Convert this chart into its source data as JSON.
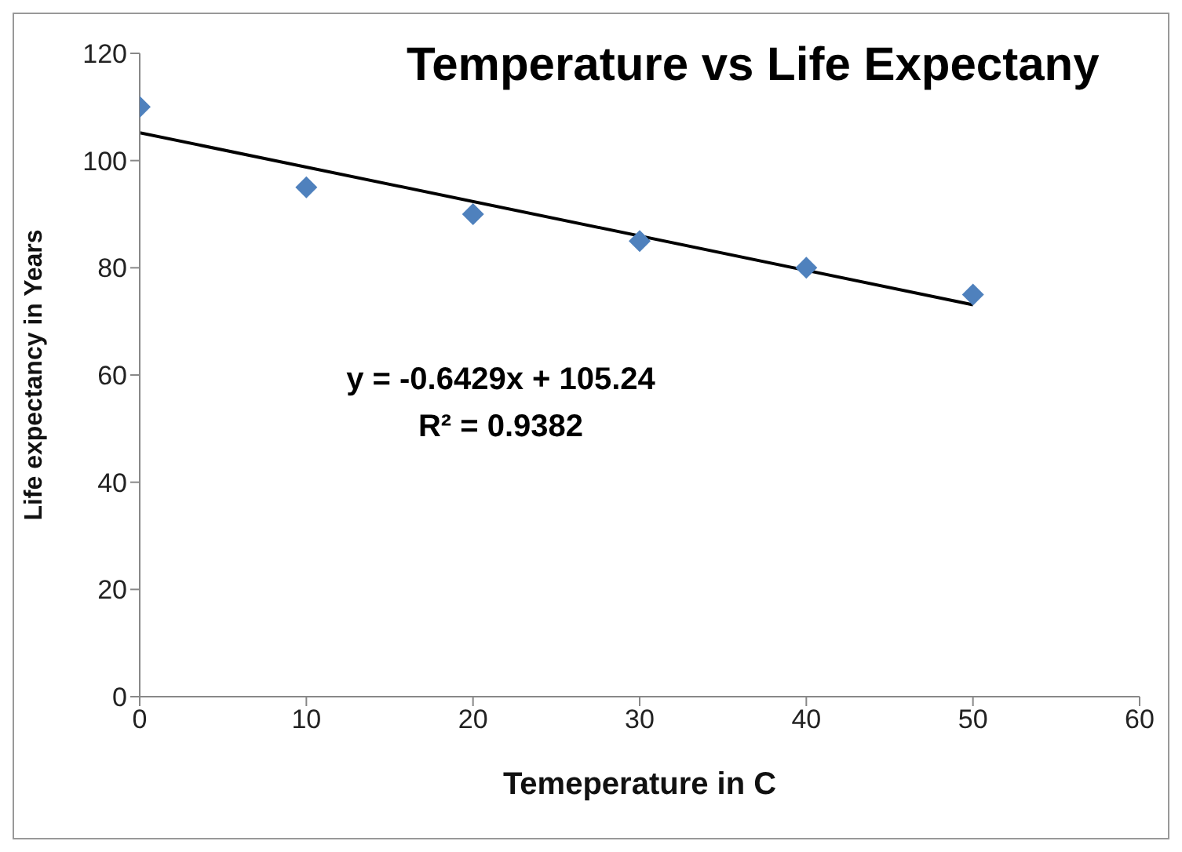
{
  "chart_data": {
    "type": "scatter",
    "title": "Temperature vs Life Expectany",
    "xlabel": "Temeperature in C",
    "ylabel": "Life expectancy in Years",
    "xlim": [
      0,
      60
    ],
    "xticks": [
      0,
      10,
      20,
      30,
      40,
      50,
      60
    ],
    "ylim": [
      0,
      120
    ],
    "yticks": [
      0,
      20,
      40,
      60,
      80,
      100,
      120
    ],
    "series": [
      {
        "color": "#4f81bd",
        "marker": "diamond",
        "x": [
          0,
          10,
          20,
          30,
          40,
          50
        ],
        "values": [
          110,
          95,
          90,
          85,
          80,
          75
        ]
      },
      {
        "type": "line",
        "color": "#000000",
        "marker": "none",
        "x": [
          0,
          50
        ],
        "values": [
          105.2,
          73.1
        ]
      }
    ],
    "annotations": [
      "y = -0.6429x + 105.24",
      "R² = 0.9382"
    ]
  }
}
